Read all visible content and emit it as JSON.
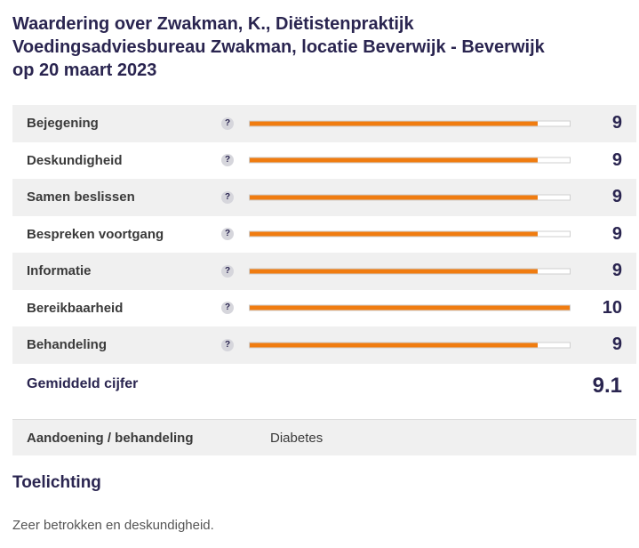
{
  "title_lines": [
    "Waardering over Zwakman, K., Diëtistenpraktijk",
    "Voedingsadviesbureau Zwakman, locatie Beverwijk - Beverwijk",
    "op 20 maart 2023"
  ],
  "help_symbol": "?",
  "ratings": [
    {
      "label": "Bejegening",
      "score": "9",
      "fraction": 0.9
    },
    {
      "label": "Deskundigheid",
      "score": "9",
      "fraction": 0.9
    },
    {
      "label": "Samen beslissen",
      "score": "9",
      "fraction": 0.9
    },
    {
      "label": "Bespreken voortgang",
      "score": "9",
      "fraction": 0.9
    },
    {
      "label": "Informatie",
      "score": "9",
      "fraction": 0.9
    },
    {
      "label": "Bereikbaarheid",
      "score": "10",
      "fraction": 1.0
    },
    {
      "label": "Behandeling",
      "score": "9",
      "fraction": 0.9
    }
  ],
  "average": {
    "label": "Gemiddeld cijfer",
    "value": "9.1"
  },
  "condition": {
    "label": "Aandoening / behandeling",
    "value": "Diabetes"
  },
  "toelichting": {
    "heading": "Toelichting",
    "text": "Zeer betrokken en deskundigheid."
  },
  "colors": {
    "accent": "#f07c10",
    "title": "#2a2550",
    "row_bg": "#f0f0f0"
  }
}
